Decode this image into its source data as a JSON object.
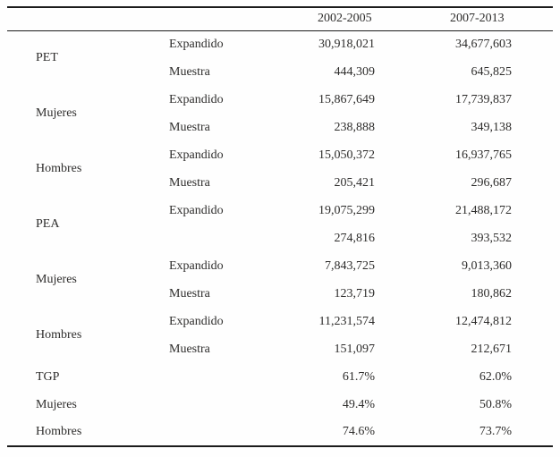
{
  "colors": {
    "rule": "#1b1b1b",
    "text": "#2e2d2c",
    "background": "#fefefe"
  },
  "table": {
    "column_headers": [
      "2002-2005",
      "2007-2013"
    ],
    "groups": [
      {
        "label": "PET",
        "rows": [
          {
            "sub": "Expandido",
            "v2002_2005": "30,918,021",
            "v2007_2013": "34,677,603"
          },
          {
            "sub": "Muestra",
            "v2002_2005": "444,309",
            "v2007_2013": "645,825"
          }
        ]
      },
      {
        "label": "Mujeres",
        "rows": [
          {
            "sub": "Expandido",
            "v2002_2005": "15,867,649",
            "v2007_2013": "17,739,837"
          },
          {
            "sub": "Muestra",
            "v2002_2005": "238,888",
            "v2007_2013": "349,138"
          }
        ]
      },
      {
        "label": "Hombres",
        "rows": [
          {
            "sub": "Expandido",
            "v2002_2005": "15,050,372",
            "v2007_2013": "16,937,765"
          },
          {
            "sub": "Muestra",
            "v2002_2005": "205,421",
            "v2007_2013": "296,687"
          }
        ]
      },
      {
        "label": "PEA",
        "rows": [
          {
            "sub": "Expandido",
            "v2002_2005": "19,075,299",
            "v2007_2013": "21,488,172"
          },
          {
            "sub": "",
            "v2002_2005": "274,816",
            "v2007_2013": "393,532"
          }
        ]
      },
      {
        "label": "Mujeres",
        "rows": [
          {
            "sub": "Expandido",
            "v2002_2005": "7,843,725",
            "v2007_2013": "9,013,360"
          },
          {
            "sub": "Muestra",
            "v2002_2005": "123,719",
            "v2007_2013": "180,862"
          }
        ]
      },
      {
        "label": "Hombres",
        "rows": [
          {
            "sub": "Expandido",
            "v2002_2005": "11,231,574",
            "v2007_2013": "12,474,812"
          },
          {
            "sub": "Muestra",
            "v2002_2005": "151,097",
            "v2007_2013": "212,671"
          }
        ]
      }
    ],
    "summary_rows": [
      {
        "label": "TGP",
        "v2002_2005": "61.7%",
        "v2007_2013": "62.0%"
      },
      {
        "label": "Mujeres",
        "v2002_2005": "49.4%",
        "v2007_2013": "50.8%"
      },
      {
        "label": "Hombres",
        "v2002_2005": "74.6%",
        "v2007_2013": "73.7%"
      }
    ]
  }
}
